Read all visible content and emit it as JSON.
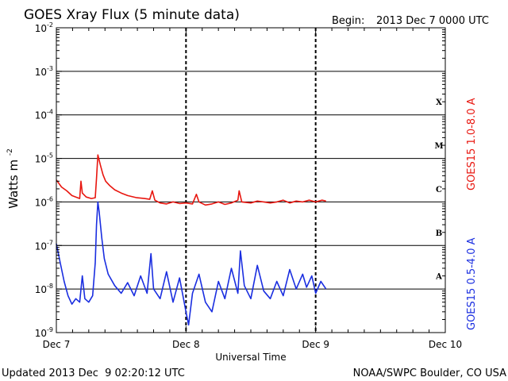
{
  "chart_data": {
    "type": "line",
    "title": "GOES Xray Flux (5 minute data)",
    "begin_label": "Begin:",
    "begin_value": "2013 Dec 7 0000 UTC",
    "ylabel_base": "Watts m",
    "ylabel_exp": "-2",
    "xlabel": "Universal Time",
    "yscale": "log",
    "ylim": [
      1e-09,
      0.01
    ],
    "xlim_days": [
      0,
      3
    ],
    "y_ticks": [
      {
        "base": "10",
        "exp": "-2",
        "value": 0.01
      },
      {
        "base": "10",
        "exp": "-3",
        "value": 0.001
      },
      {
        "base": "10",
        "exp": "-4",
        "value": 0.0001
      },
      {
        "base": "10",
        "exp": "-5",
        "value": 1e-05
      },
      {
        "base": "10",
        "exp": "-6",
        "value": 1e-06
      },
      {
        "base": "10",
        "exp": "-7",
        "value": 1e-07
      },
      {
        "base": "10",
        "exp": "-8",
        "value": 1e-08
      },
      {
        "base": "10",
        "exp": "-9",
        "value": 1e-09
      }
    ],
    "x_ticks": [
      {
        "label": "Dec 7",
        "day": 0
      },
      {
        "label": "Dec 8",
        "day": 1
      },
      {
        "label": "Dec 9",
        "day": 2
      },
      {
        "label": "Dec 10",
        "day": 3
      }
    ],
    "flare_classes": [
      {
        "label": "X",
        "value": 0.0002
      },
      {
        "label": "M",
        "value": 2e-05
      },
      {
        "label": "C",
        "value": 2e-06
      },
      {
        "label": "B",
        "value": 2e-07
      },
      {
        "label": "A",
        "value": 2e-08
      }
    ],
    "grid": "horizontal decade lines; dashed vertical line at each day",
    "series": [
      {
        "name": "GOES15 1.0-8.0 A",
        "color": "#e8160f",
        "points": [
          [
            0.0,
            3.2e-06
          ],
          [
            0.04,
            2.2e-06
          ],
          [
            0.08,
            1.8e-06
          ],
          [
            0.12,
            1.4e-06
          ],
          [
            0.18,
            1.2e-06
          ],
          [
            0.19,
            3e-06
          ],
          [
            0.2,
            1.6e-06
          ],
          [
            0.23,
            1.3e-06
          ],
          [
            0.27,
            1.2e-06
          ],
          [
            0.3,
            1.25e-06
          ],
          [
            0.31,
            3.5e-06
          ],
          [
            0.32,
            1.2e-05
          ],
          [
            0.34,
            7e-06
          ],
          [
            0.36,
            4.2e-06
          ],
          [
            0.38,
            3e-06
          ],
          [
            0.41,
            2.4e-06
          ],
          [
            0.45,
            1.9e-06
          ],
          [
            0.5,
            1.6e-06
          ],
          [
            0.55,
            1.4e-06
          ],
          [
            0.62,
            1.25e-06
          ],
          [
            0.68,
            1.2e-06
          ],
          [
            0.72,
            1.15e-06
          ],
          [
            0.74,
            1.8e-06
          ],
          [
            0.76,
            1.1e-06
          ],
          [
            0.8,
            9.5e-07
          ],
          [
            0.85,
            9e-07
          ],
          [
            0.9,
            1e-06
          ],
          [
            0.95,
            9.2e-07
          ],
          [
            1.0,
            9.5e-07
          ],
          [
            1.05,
            9e-07
          ],
          [
            1.08,
            1.5e-06
          ],
          [
            1.1,
            1e-06
          ],
          [
            1.15,
            8.5e-07
          ],
          [
            1.2,
            9e-07
          ],
          [
            1.25,
            1e-06
          ],
          [
            1.3,
            8.8e-07
          ],
          [
            1.35,
            9.5e-07
          ],
          [
            1.4,
            1.1e-06
          ],
          [
            1.41,
            1.8e-06
          ],
          [
            1.43,
            1e-06
          ],
          [
            1.5,
            9.5e-07
          ],
          [
            1.55,
            1.05e-06
          ],
          [
            1.6,
            1e-06
          ],
          [
            1.65,
            9.5e-07
          ],
          [
            1.7,
            1e-06
          ],
          [
            1.75,
            1.1e-06
          ],
          [
            1.8,
            9.5e-07
          ],
          [
            1.85,
            1.05e-06
          ],
          [
            1.9,
            1e-06
          ],
          [
            1.95,
            1.1e-06
          ],
          [
            2.0,
            1e-06
          ],
          [
            2.05,
            1.1e-06
          ],
          [
            2.08,
            1.05e-06
          ]
        ]
      },
      {
        "name": "GOES15 0.5-4.0 A",
        "color": "#1a2ee0",
        "points": [
          [
            0.0,
            1.1e-07
          ],
          [
            0.03,
            4e-08
          ],
          [
            0.06,
            1.5e-08
          ],
          [
            0.09,
            7e-09
          ],
          [
            0.12,
            4.5e-09
          ],
          [
            0.15,
            6e-09
          ],
          [
            0.18,
            5e-09
          ],
          [
            0.2,
            2e-08
          ],
          [
            0.22,
            6e-09
          ],
          [
            0.25,
            5e-09
          ],
          [
            0.28,
            7e-09
          ],
          [
            0.3,
            4e-08
          ],
          [
            0.31,
            3e-07
          ],
          [
            0.32,
            1e-06
          ],
          [
            0.33,
            6e-07
          ],
          [
            0.35,
            1.5e-07
          ],
          [
            0.37,
            5e-08
          ],
          [
            0.4,
            2.2e-08
          ],
          [
            0.45,
            1.2e-08
          ],
          [
            0.5,
            8e-09
          ],
          [
            0.55,
            1.4e-08
          ],
          [
            0.6,
            7e-09
          ],
          [
            0.65,
            2e-08
          ],
          [
            0.7,
            8e-09
          ],
          [
            0.73,
            6.5e-08
          ],
          [
            0.75,
            1e-08
          ],
          [
            0.8,
            6e-09
          ],
          [
            0.85,
            2.5e-08
          ],
          [
            0.9,
            5e-09
          ],
          [
            0.95,
            1.8e-08
          ],
          [
            1.0,
            3e-09
          ],
          [
            1.02,
            1.5e-09
          ],
          [
            1.05,
            8e-09
          ],
          [
            1.1,
            2.2e-08
          ],
          [
            1.15,
            5e-09
          ],
          [
            1.2,
            3e-09
          ],
          [
            1.25,
            1.5e-08
          ],
          [
            1.3,
            6e-09
          ],
          [
            1.35,
            3e-08
          ],
          [
            1.4,
            8e-09
          ],
          [
            1.42,
            7.5e-08
          ],
          [
            1.45,
            1.2e-08
          ],
          [
            1.5,
            6e-09
          ],
          [
            1.55,
            3.5e-08
          ],
          [
            1.6,
            9e-09
          ],
          [
            1.65,
            6e-09
          ],
          [
            1.7,
            1.5e-08
          ],
          [
            1.75,
            7e-09
          ],
          [
            1.8,
            2.8e-08
          ],
          [
            1.85,
            1e-08
          ],
          [
            1.9,
            2.2e-08
          ],
          [
            1.93,
            1.1e-08
          ],
          [
            1.97,
            2e-08
          ],
          [
            2.0,
            8e-09
          ],
          [
            2.04,
            1.5e-08
          ],
          [
            2.08,
            1e-08
          ]
        ]
      }
    ],
    "footer_left": "Updated 2013 Dec  9 02:20:12 UTC",
    "footer_right": "NOAA/SWPC Boulder, CO USA"
  }
}
